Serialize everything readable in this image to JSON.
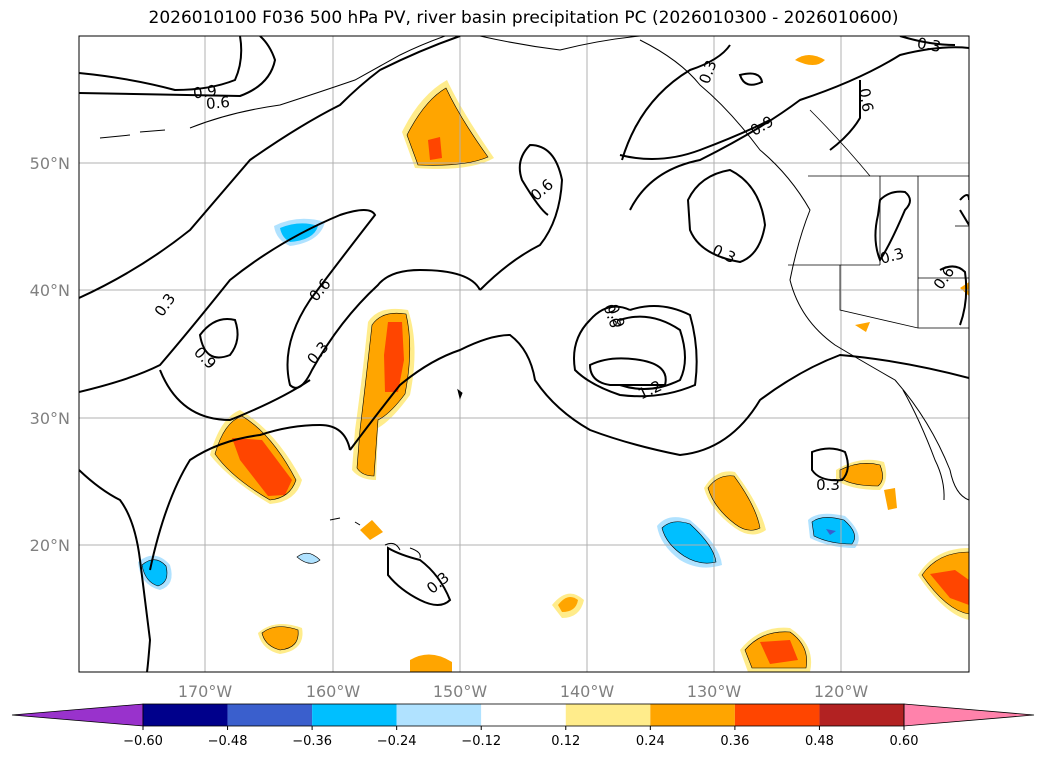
{
  "title": "2026010100 F036 500 hPa PV, river basin precipitation PC (2026010300 - 2026010600)",
  "lat_ticks": [
    "50°N",
    "40°N",
    "30°N",
    "20°N"
  ],
  "lon_ticks": [
    "170°W",
    "160°W",
    "150°W",
    "140°W",
    "130°W",
    "120°W"
  ],
  "colorbar": {
    "labels": [
      "−0.60",
      "−0.48",
      "−0.36",
      "−0.24",
      "−0.12",
      "0.12",
      "0.24",
      "0.36",
      "0.48",
      "0.60"
    ],
    "under_color": "#9932cc",
    "colors": [
      "#00008b",
      "#3a5fcd",
      "#00bfff",
      "#b0e2ff",
      "#ffffff",
      "#ffec8b",
      "#ffa500",
      "#ff4500",
      "#b22222"
    ],
    "over_color": "#ff82ab"
  },
  "contour_labels": [
    "0.9",
    "0.6",
    "0.3",
    "0.6",
    "0.9",
    "0.3",
    "0.6",
    "0.3",
    "0.9",
    "1.2",
    "0.3",
    "0.9",
    "0.6",
    "0.3",
    "0.3",
    "0.6",
    "0.3",
    "0.3",
    "0.6"
  ],
  "colors": {
    "positive": "#ffa500",
    "strong_positive": "#ff4500",
    "light_positive": "#ffec8b",
    "negative": "#00bfff",
    "light_negative": "#b0e2ff",
    "contour": "#000000",
    "grid": "#b0b0b0",
    "tick_text": "#808080"
  }
}
